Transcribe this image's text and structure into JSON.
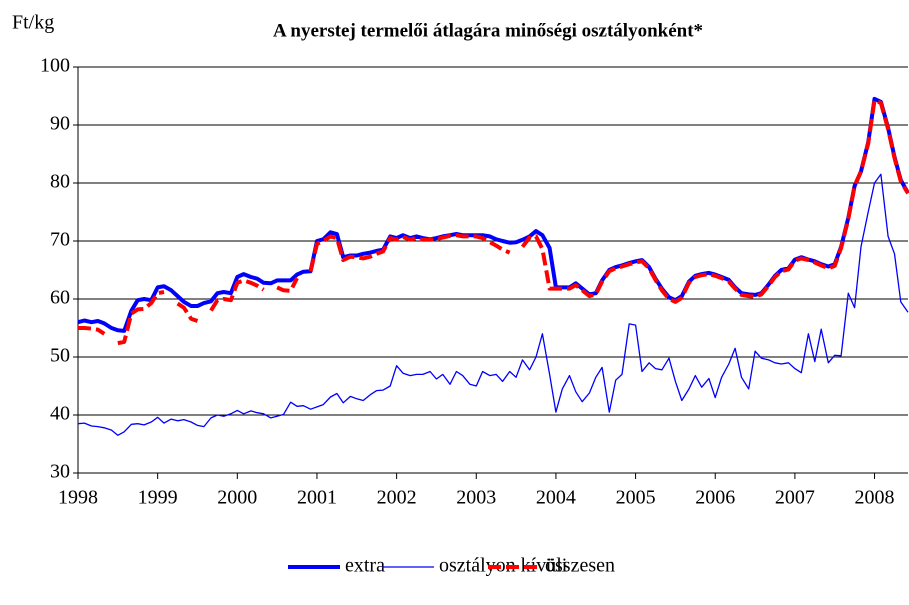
{
  "chart_data": {
    "type": "line",
    "title": "A nyerstej termelői átlagára minőségi osztályonként*",
    "ylabel": "Ft/kg",
    "x": [
      1998,
      1998.08,
      1998.17,
      1998.25,
      1998.33,
      1998.42,
      1998.5,
      1998.58,
      1998.67,
      1998.75,
      1998.83,
      1998.92,
      1999,
      1999.08,
      1999.17,
      1999.25,
      1999.33,
      1999.42,
      1999.5,
      1999.58,
      1999.67,
      1999.75,
      1999.83,
      1999.92,
      2000,
      2000.08,
      2000.17,
      2000.25,
      2000.33,
      2000.42,
      2000.5,
      2000.58,
      2000.67,
      2000.75,
      2000.83,
      2000.92,
      2001,
      2001.08,
      2001.17,
      2001.25,
      2001.33,
      2001.42,
      2001.5,
      2001.58,
      2001.67,
      2001.75,
      2001.83,
      2001.92,
      2002,
      2002.08,
      2002.17,
      2002.25,
      2002.33,
      2002.42,
      2002.5,
      2002.58,
      2002.67,
      2002.75,
      2002.83,
      2002.92,
      2003,
      2003.08,
      2003.17,
      2003.25,
      2003.33,
      2003.42,
      2003.5,
      2003.58,
      2003.67,
      2003.75,
      2003.83,
      2003.92,
      2004,
      2004.08,
      2004.17,
      2004.25,
      2004.33,
      2004.42,
      2004.5,
      2004.58,
      2004.67,
      2004.75,
      2004.83,
      2004.92,
      2005,
      2005.08,
      2005.17,
      2005.25,
      2005.33,
      2005.42,
      2005.5,
      2005.58,
      2005.67,
      2005.75,
      2005.83,
      2005.92,
      2006,
      2006.08,
      2006.17,
      2006.25,
      2006.33,
      2006.42,
      2006.5,
      2006.58,
      2006.67,
      2006.75,
      2006.83,
      2006.92,
      2007,
      2007.08,
      2007.17,
      2007.25,
      2007.33,
      2007.42,
      2007.5,
      2007.58,
      2007.67,
      2007.75,
      2007.83,
      2007.92,
      2008,
      2008.08,
      2008.17,
      2008.25,
      2008.33,
      2008.42
    ],
    "series": [
      {
        "name": "extra",
        "color": "#0000ff",
        "line_width": 4,
        "dashed": false,
        "values": [
          56,
          56.3,
          56,
          56.2,
          55.8,
          55,
          54.6,
          54.5,
          58,
          59.8,
          60,
          59.8,
          62,
          62.2,
          61.5,
          60.5,
          59.5,
          58.8,
          58.8,
          59.3,
          59.6,
          61,
          61.2,
          61,
          63.8,
          64.3,
          63.8,
          63.5,
          62.8,
          62.7,
          63.2,
          63.2,
          63.2,
          64.2,
          64.7,
          64.8,
          70,
          70.3,
          71.5,
          71.2,
          67.2,
          67.5,
          67.5,
          67.8,
          68,
          68.3,
          68.5,
          70.8,
          70.5,
          71,
          70.5,
          70.8,
          70.5,
          70.3,
          70.5,
          70.8,
          71,
          71.2,
          71,
          71,
          71,
          71,
          70.8,
          70.3,
          70,
          69.7,
          69.8,
          70.2,
          70.8,
          71.7,
          71,
          68.8,
          62,
          62,
          62,
          62.7,
          61.8,
          60.8,
          61,
          63.2,
          65,
          65.5,
          65.8,
          66.2,
          66.5,
          66.7,
          65.5,
          63.5,
          61.8,
          60.3,
          59.8,
          60.5,
          63,
          64,
          64.3,
          64.5,
          64.2,
          63.8,
          63.3,
          62,
          61,
          60.8,
          60.7,
          61,
          62.5,
          64,
          65,
          65.3,
          66.8,
          67.2,
          66.8,
          66.5,
          66,
          65.6,
          66,
          69,
          74,
          79.5,
          82,
          87,
          94.5,
          94,
          89.5,
          84.5,
          80.5,
          78.3
        ]
      },
      {
        "name": "osztályon kívüli",
        "color": "#0000ff",
        "line_width": 1.3,
        "dashed": false,
        "values": [
          38.5,
          38.6,
          38.1,
          38,
          37.8,
          37.4,
          36.5,
          37.1,
          38.4,
          38.5,
          38.3,
          38.8,
          39.6,
          38.6,
          39.3,
          39,
          39.2,
          38.8,
          38.2,
          38,
          39.5,
          40,
          39.8,
          40.2,
          40.8,
          40.2,
          40.7,
          40.4,
          40.2,
          39.5,
          39.8,
          40.1,
          42.2,
          41.5,
          41.6,
          41,
          41.4,
          41.8,
          43.1,
          43.7,
          42.1,
          43.2,
          42.8,
          42.5,
          43.5,
          44.2,
          44.3,
          45,
          48.5,
          47.2,
          46.8,
          47,
          47,
          47.5,
          46.2,
          47,
          45.3,
          47.5,
          46.8,
          45.3,
          45,
          47.5,
          46.8,
          47,
          45.8,
          47.5,
          46.5,
          49.5,
          47.8,
          50,
          54,
          47,
          40.5,
          44.5,
          46.8,
          44,
          42.3,
          43.8,
          46.5,
          48.2,
          40.5,
          46,
          47,
          55.7,
          55.5,
          47.5,
          49,
          48,
          47.8,
          49.8,
          45.8,
          42.5,
          44.5,
          46.8,
          44.8,
          46.3,
          43,
          46.5,
          48.8,
          51.5,
          46.5,
          44.5,
          51,
          49.8,
          49.5,
          49,
          48.8,
          49,
          48,
          47.3,
          54,
          49.2,
          54.8,
          49,
          50.3,
          50.2,
          61,
          58.5,
          69,
          75,
          80,
          81.5,
          70.8,
          67.8,
          59.5,
          57.7
        ]
      },
      {
        "name": "összesen",
        "color": "#ff0000",
        "line_width": 4,
        "dashed": true,
        "values": [
          55,
          55,
          54.9,
          54.7,
          54,
          null,
          52.4,
          52.6,
          57.5,
          58.2,
          58.3,
          59.3,
          61,
          61.2,
          null,
          59.2,
          58.5,
          56.6,
          56.2,
          null,
          58,
          59.8,
          60,
          59.8,
          62.8,
          63.2,
          62.8,
          62.3,
          61.6,
          null,
          62,
          61.5,
          61.4,
          63.6,
          null,
          64.8,
          69.5,
          70,
          70.8,
          70.5,
          66.7,
          67.3,
          67.2,
          67,
          67.3,
          67.8,
          68.2,
          70.5,
          70.2,
          70.7,
          70.2,
          70.5,
          70.2,
          70.2,
          70.3,
          70.6,
          70.9,
          71,
          70.8,
          70.8,
          70.8,
          70.5,
          69.8,
          69.2,
          68.5,
          68,
          null,
          69,
          70.6,
          70.8,
          68.6,
          61.8,
          61.8,
          61.8,
          61.8,
          62.4,
          61.5,
          60.5,
          60.8,
          63,
          64.8,
          65.3,
          65.6,
          66,
          66.3,
          66.5,
          65.3,
          63.3,
          61.5,
          60,
          59.5,
          60.2,
          62.8,
          63.8,
          64.1,
          64.3,
          64,
          63.6,
          63,
          61.8,
          60.7,
          60.5,
          60.4,
          60.8,
          62.3,
          63.8,
          64.8,
          65.1,
          66.6,
          67,
          66.7,
          66.3,
          65.8,
          65.3,
          65.7,
          68.8,
          73.8,
          79.5,
          82,
          86.8,
          94.3,
          93.8,
          89.3,
          84.3,
          80.3,
          78.2
        ]
      }
    ],
    "xlim": [
      1998,
      2008.42
    ],
    "xticks": [
      1998,
      1999,
      2000,
      2001,
      2002,
      2003,
      2004,
      2005,
      2006,
      2007,
      2008
    ],
    "ylim": [
      30,
      100
    ],
    "yticks": [
      30,
      40,
      50,
      60,
      70,
      80,
      90,
      100
    ],
    "grid": true,
    "legend": "bottom"
  }
}
